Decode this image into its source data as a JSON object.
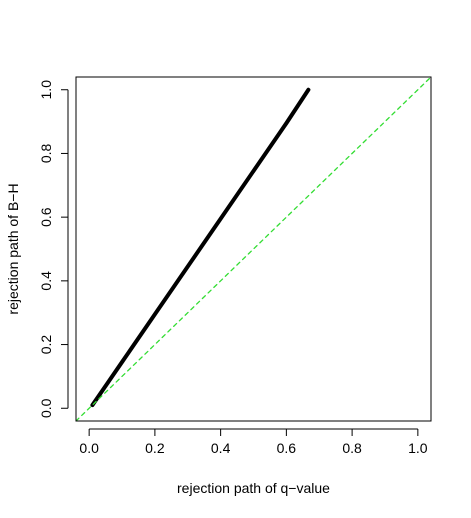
{
  "chart_data": {
    "type": "line",
    "xlabel": "rejection path of q−value",
    "ylabel": "rejection path of B−H",
    "xlim": [
      -0.04,
      1.04
    ],
    "ylim": [
      -0.04,
      1.04
    ],
    "x_ticks": [
      0.0,
      0.2,
      0.4,
      0.6,
      0.8,
      1.0
    ],
    "x_tick_labels": [
      "0.0",
      "0.2",
      "0.4",
      "0.6",
      "0.8",
      "1.0"
    ],
    "y_ticks": [
      0.0,
      0.2,
      0.4,
      0.6,
      0.8,
      1.0
    ],
    "y_tick_labels": [
      "0.0",
      "0.2",
      "0.4",
      "0.6",
      "0.8",
      "1.0"
    ],
    "grid": false,
    "series": [
      {
        "style": "solid-thick",
        "color": "#000000",
        "x": [
          0.01,
          0.1,
          0.2,
          0.3,
          0.4,
          0.5,
          0.6,
          0.667
        ],
        "y": [
          0.01,
          0.145,
          0.295,
          0.445,
          0.595,
          0.745,
          0.895,
          1.0
        ]
      },
      {
        "style": "dashed",
        "color": "#33dd33",
        "x": [
          -0.04,
          1.04
        ],
        "y": [
          -0.04,
          1.04
        ]
      }
    ]
  }
}
